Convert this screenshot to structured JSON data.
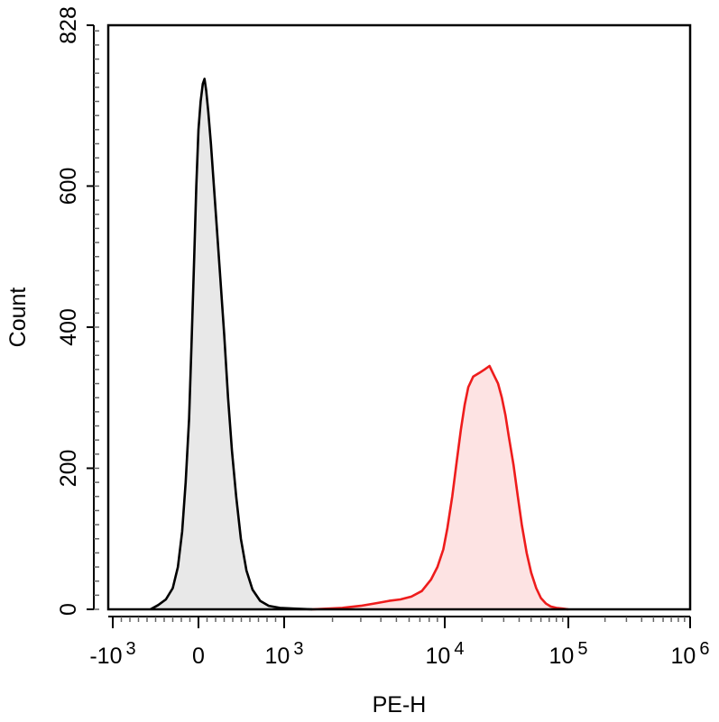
{
  "chart_data": {
    "type": "area",
    "title": "",
    "xlabel": "PE-H",
    "ylabel": "Count",
    "x_scale": "biexponential",
    "ylim": [
      0,
      828
    ],
    "grid": false,
    "legend": "none",
    "x_ticks": [
      {
        "value": -1000,
        "base": "-10",
        "exp": "3"
      },
      {
        "value": 0,
        "base": "0",
        "exp": ""
      },
      {
        "value": 1000,
        "base": "10",
        "exp": "3"
      },
      {
        "value": 10000,
        "base": "10",
        "exp": "4"
      },
      {
        "value": 100000,
        "base": "10",
        "exp": "5"
      },
      {
        "value": 1000000,
        "base": "10",
        "exp": "6"
      }
    ],
    "y_ticks": [
      {
        "value": 0,
        "label": "0"
      },
      {
        "value": 200,
        "label": "200"
      },
      {
        "value": 400,
        "label": "400"
      },
      {
        "value": 600,
        "label": "600"
      },
      {
        "value": 828,
        "label": "828"
      }
    ],
    "series": [
      {
        "color": "#000000",
        "fill": "#e8e8e8",
        "points": [
          [
            -560,
            0
          ],
          [
            -470,
            6
          ],
          [
            -380,
            14
          ],
          [
            -300,
            30
          ],
          [
            -240,
            60
          ],
          [
            -190,
            110
          ],
          [
            -150,
            180
          ],
          [
            -110,
            270
          ],
          [
            -80,
            380
          ],
          [
            -50,
            500
          ],
          [
            -25,
            600
          ],
          [
            0,
            680
          ],
          [
            25,
            720
          ],
          [
            50,
            745
          ],
          [
            70,
            752
          ],
          [
            90,
            735
          ],
          [
            115,
            705
          ],
          [
            145,
            660
          ],
          [
            180,
            600
          ],
          [
            215,
            540
          ],
          [
            255,
            470
          ],
          [
            300,
            390
          ],
          [
            345,
            300
          ],
          [
            390,
            225
          ],
          [
            440,
            160
          ],
          [
            495,
            100
          ],
          [
            560,
            55
          ],
          [
            630,
            28
          ],
          [
            720,
            12
          ],
          [
            820,
            5
          ],
          [
            950,
            2
          ],
          [
            1150,
            1
          ],
          [
            1500,
            0
          ]
        ]
      },
      {
        "color": "#ee1c1c",
        "fill": "#fde3e3",
        "points": [
          [
            1500,
            0
          ],
          [
            2300,
            2
          ],
          [
            3000,
            5
          ],
          [
            3800,
            9
          ],
          [
            4500,
            12
          ],
          [
            5300,
            14
          ],
          [
            6200,
            18
          ],
          [
            7200,
            26
          ],
          [
            8200,
            42
          ],
          [
            9000,
            60
          ],
          [
            9800,
            85
          ],
          [
            10500,
            115
          ],
          [
            11500,
            160
          ],
          [
            12500,
            210
          ],
          [
            13500,
            255
          ],
          [
            14500,
            290
          ],
          [
            15500,
            315
          ],
          [
            17000,
            330
          ],
          [
            19000,
            335
          ],
          [
            21000,
            340
          ],
          [
            23000,
            345
          ],
          [
            25000,
            332
          ],
          [
            27000,
            320
          ],
          [
            29000,
            300
          ],
          [
            31000,
            275
          ],
          [
            33000,
            245
          ],
          [
            36000,
            205
          ],
          [
            39000,
            160
          ],
          [
            42000,
            120
          ],
          [
            46000,
            80
          ],
          [
            50000,
            52
          ],
          [
            55000,
            30
          ],
          [
            60000,
            16
          ],
          [
            66000,
            8
          ],
          [
            72000,
            4
          ],
          [
            80000,
            2
          ],
          [
            90000,
            1
          ],
          [
            100000,
            0
          ]
        ]
      }
    ]
  }
}
